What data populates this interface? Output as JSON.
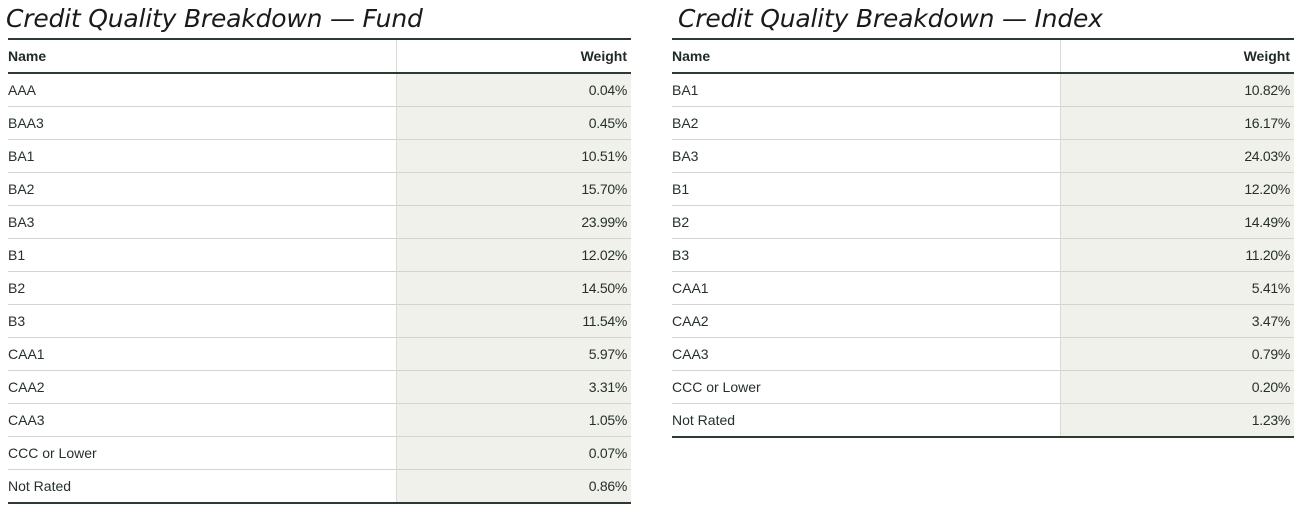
{
  "fund": {
    "title": "Credit Quality Breakdown — Fund",
    "headers": {
      "name": "Name",
      "weight": "Weight"
    },
    "rows": [
      {
        "name": "AAA",
        "weight": "0.04%"
      },
      {
        "name": "BAA3",
        "weight": "0.45%"
      },
      {
        "name": "BA1",
        "weight": "10.51%"
      },
      {
        "name": "BA2",
        "weight": "15.70%"
      },
      {
        "name": "BA3",
        "weight": "23.99%"
      },
      {
        "name": "B1",
        "weight": "12.02%"
      },
      {
        "name": "B2",
        "weight": "14.50%"
      },
      {
        "name": "B3",
        "weight": "11.54%"
      },
      {
        "name": "CAA1",
        "weight": "5.97%"
      },
      {
        "name": "CAA2",
        "weight": "3.31%"
      },
      {
        "name": "CAA3",
        "weight": "1.05%"
      },
      {
        "name": "CCC or Lower",
        "weight": "0.07%"
      },
      {
        "name": "Not Rated",
        "weight": "0.86%"
      }
    ]
  },
  "index": {
    "title": "Credit Quality Breakdown — Index",
    "headers": {
      "name": "Name",
      "weight": "Weight"
    },
    "rows": [
      {
        "name": "BA1",
        "weight": "10.82%"
      },
      {
        "name": "BA2",
        "weight": "16.17%"
      },
      {
        "name": "BA3",
        "weight": "24.03%"
      },
      {
        "name": "B1",
        "weight": "12.20%"
      },
      {
        "name": "B2",
        "weight": "14.49%"
      },
      {
        "name": "B3",
        "weight": "11.20%"
      },
      {
        "name": "CAA1",
        "weight": "5.41%"
      },
      {
        "name": "CAA2",
        "weight": "3.47%"
      },
      {
        "name": "CAA3",
        "weight": "0.79%"
      },
      {
        "name": "CCC or Lower",
        "weight": "0.20%"
      },
      {
        "name": "Not Rated",
        "weight": "1.23%"
      }
    ]
  }
}
